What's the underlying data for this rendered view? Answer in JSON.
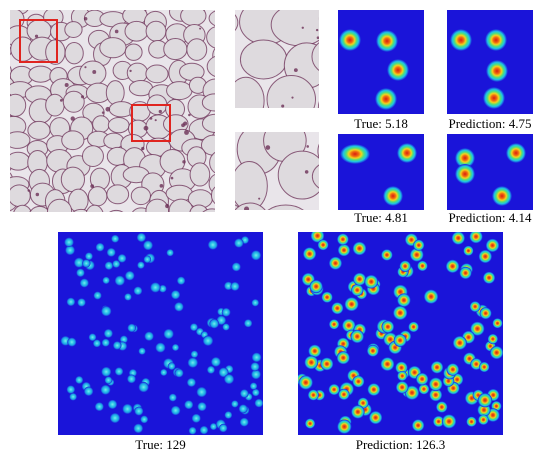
{
  "palette": {
    "heatmap_bg": "#1a14d9",
    "peak_red": "#d81e10",
    "tissue_bg": "#e9e5ea",
    "cell_fill": "#dedade",
    "membrane": "#6b2f56",
    "roi_box": "#e0241f"
  },
  "top_row": {
    "crop_pair_1": {
      "true_caption": "True: 5.18",
      "prediction_caption": "Prediction: 4.75"
    },
    "crop_pair_2": {
      "true_caption": "True: 4.81",
      "prediction_caption": "Prediction: 4.14"
    }
  },
  "bottom_row": {
    "true_caption": "True: 129",
    "prediction_caption": "Prediction: 126.3"
  }
}
